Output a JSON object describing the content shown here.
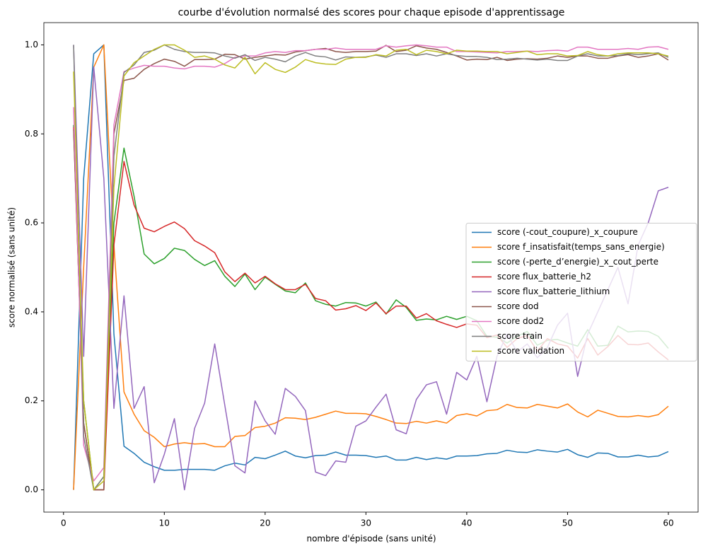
{
  "chart_data": {
    "type": "line",
    "title": "courbe d'évolution normalsé des scores pour chaque episode d'apprentissage",
    "x_label": "nombre d'épisode (sans unité)",
    "y_label": "score normalisé (sans unité)",
    "x": [
      1,
      2,
      3,
      4,
      5,
      6,
      7,
      8,
      9,
      10,
      11,
      12,
      13,
      14,
      15,
      16,
      17,
      18,
      19,
      20,
      21,
      22,
      23,
      24,
      25,
      26,
      27,
      28,
      29,
      30,
      31,
      32,
      33,
      34,
      35,
      36,
      37,
      38,
      39,
      40,
      41,
      42,
      43,
      44,
      45,
      46,
      47,
      48,
      49,
      50,
      51,
      52,
      53,
      54,
      55,
      56,
      57,
      58,
      59,
      60
    ],
    "xlim": [
      -1.95,
      62.95
    ],
    "xticks": [
      0,
      10,
      20,
      30,
      40,
      50,
      60
    ],
    "ylim": [
      -0.05,
      1.05
    ],
    "yticks": [
      {
        "value": 0,
        "label": "0.0"
      },
      0.2,
      0.4,
      0.6,
      0.8,
      {
        "value": 1,
        "label": "1.0"
      }
    ],
    "grid": false,
    "legend_position": "center right",
    "series": [
      {
        "name": "score (-cout_coupure)_x_coupure",
        "color": "#1f77b4",
        "values": [
          0.0,
          0.7,
          0.98,
          1.0,
          0.35,
          0.098,
          0.082,
          0.062,
          0.052,
          0.044,
          0.044,
          0.046,
          0.046,
          0.046,
          0.044,
          0.054,
          0.06,
          0.056,
          0.073,
          0.07,
          0.078,
          0.087,
          0.076,
          0.072,
          0.077,
          0.078,
          0.085,
          0.078,
          0.078,
          0.077,
          0.073,
          0.076,
          0.067,
          0.067,
          0.073,
          0.068,
          0.072,
          0.069,
          0.076,
          0.076,
          0.077,
          0.081,
          0.082,
          0.089,
          0.085,
          0.084,
          0.09,
          0.087,
          0.085,
          0.091,
          0.079,
          0.073,
          0.083,
          0.082,
          0.074,
          0.074,
          0.078,
          0.074,
          0.076,
          0.086
        ]
      },
      {
        "name": "score f_insatisfait(temps_sans_energie)",
        "color": "#ff7f0e",
        "values": [
          0.0,
          0.5,
          0.95,
          1.0,
          0.55,
          0.22,
          0.17,
          0.133,
          0.118,
          0.097,
          0.103,
          0.106,
          0.103,
          0.104,
          0.097,
          0.097,
          0.12,
          0.122,
          0.14,
          0.143,
          0.15,
          0.162,
          0.161,
          0.158,
          0.163,
          0.17,
          0.177,
          0.172,
          0.172,
          0.171,
          0.165,
          0.158,
          0.15,
          0.149,
          0.154,
          0.15,
          0.155,
          0.15,
          0.167,
          0.171,
          0.166,
          0.178,
          0.18,
          0.192,
          0.185,
          0.184,
          0.192,
          0.188,
          0.184,
          0.193,
          0.175,
          0.164,
          0.179,
          0.172,
          0.165,
          0.164,
          0.167,
          0.164,
          0.169,
          0.188
        ]
      },
      {
        "name": "score (-perte_d’energie)_x_cout_perte",
        "color": "#2ca02c",
        "values": [
          0.82,
          0.2,
          0.0,
          0.03,
          0.6,
          0.768,
          0.66,
          0.53,
          0.508,
          0.52,
          0.543,
          0.538,
          0.518,
          0.504,
          0.515,
          0.48,
          0.457,
          0.485,
          0.45,
          0.478,
          0.462,
          0.447,
          0.443,
          0.465,
          0.425,
          0.417,
          0.413,
          0.421,
          0.42,
          0.413,
          0.422,
          0.395,
          0.427,
          0.41,
          0.381,
          0.384,
          0.382,
          0.39,
          0.383,
          0.39,
          0.38,
          0.345,
          0.343,
          0.33,
          0.345,
          0.356,
          0.325,
          0.336,
          0.338,
          0.33,
          0.323,
          0.36,
          0.323,
          0.325,
          0.368,
          0.355,
          0.357,
          0.356,
          0.345,
          0.318
        ]
      },
      {
        "name": "score flux_batterie_h2",
        "color": "#d62728",
        "values": [
          0.815,
          0.15,
          0.0,
          0.0,
          0.55,
          0.738,
          0.64,
          0.588,
          0.58,
          0.592,
          0.602,
          0.587,
          0.56,
          0.548,
          0.533,
          0.49,
          0.468,
          0.487,
          0.465,
          0.48,
          0.463,
          0.45,
          0.45,
          0.462,
          0.43,
          0.425,
          0.404,
          0.407,
          0.414,
          0.403,
          0.42,
          0.396,
          0.413,
          0.413,
          0.386,
          0.396,
          0.38,
          0.372,
          0.365,
          0.373,
          0.37,
          0.342,
          0.348,
          0.32,
          0.34,
          0.347,
          0.312,
          0.34,
          0.328,
          0.323,
          0.296,
          0.34,
          0.303,
          0.322,
          0.347,
          0.327,
          0.326,
          0.33,
          0.31,
          0.292
        ]
      },
      {
        "name": "score flux_batterie_lithium",
        "color": "#9467bd",
        "values": [
          1.0,
          0.3,
          0.95,
          0.7,
          0.183,
          0.436,
          0.183,
          0.232,
          0.016,
          0.08,
          0.16,
          0.0,
          0.138,
          0.195,
          0.328,
          0.19,
          0.054,
          0.038,
          0.2,
          0.155,
          0.125,
          0.228,
          0.21,
          0.178,
          0.04,
          0.032,
          0.065,
          0.062,
          0.143,
          0.155,
          0.186,
          0.215,
          0.135,
          0.126,
          0.203,
          0.236,
          0.243,
          0.17,
          0.264,
          0.247,
          0.3,
          0.198,
          0.3,
          0.35,
          0.31,
          0.328,
          0.297,
          0.32,
          0.37,
          0.397,
          0.255,
          0.35,
          0.4,
          0.45,
          0.5,
          0.418,
          0.55,
          0.6,
          0.672,
          0.68
        ]
      },
      {
        "name": "score dod",
        "color": "#8c564b",
        "values": [
          0.81,
          0.15,
          0.0,
          0.0,
          0.8,
          0.92,
          0.925,
          0.945,
          0.958,
          0.968,
          0.963,
          0.952,
          0.967,
          0.967,
          0.968,
          0.979,
          0.978,
          0.968,
          0.972,
          0.975,
          0.978,
          0.977,
          0.984,
          0.987,
          0.99,
          0.992,
          0.985,
          0.983,
          0.985,
          0.985,
          0.986,
          0.999,
          0.985,
          0.988,
          0.998,
          0.993,
          0.99,
          0.983,
          0.975,
          0.966,
          0.968,
          0.967,
          0.972,
          0.965,
          0.968,
          0.969,
          0.968,
          0.97,
          0.975,
          0.972,
          0.975,
          0.975,
          0.97,
          0.97,
          0.975,
          0.978,
          0.972,
          0.975,
          0.98,
          0.966
        ]
      },
      {
        "name": "score dod2",
        "color": "#e377c2",
        "values": [
          0.86,
          0.1,
          0.02,
          0.05,
          0.82,
          0.94,
          0.948,
          0.954,
          0.952,
          0.952,
          0.948,
          0.946,
          0.952,
          0.952,
          0.95,
          0.958,
          0.972,
          0.975,
          0.975,
          0.982,
          0.985,
          0.983,
          0.987,
          0.987,
          0.99,
          0.99,
          0.993,
          0.99,
          0.99,
          0.99,
          0.99,
          0.998,
          0.995,
          0.998,
          1.0,
          0.998,
          0.995,
          0.995,
          0.985,
          0.985,
          0.984,
          0.983,
          0.982,
          0.985,
          0.985,
          0.986,
          0.985,
          0.987,
          0.988,
          0.986,
          0.995,
          0.995,
          0.99,
          0.99,
          0.99,
          0.992,
          0.99,
          0.995,
          0.996,
          0.99
        ]
      },
      {
        "name": "score train",
        "color": "#7f7f7f",
        "values": [
          1.0,
          0.12,
          0.0,
          0.03,
          0.75,
          0.938,
          0.955,
          0.983,
          0.988,
          1.0,
          0.99,
          0.985,
          0.983,
          0.983,
          0.982,
          0.975,
          0.97,
          0.978,
          0.965,
          0.972,
          0.968,
          0.962,
          0.975,
          0.983,
          0.975,
          0.973,
          0.966,
          0.973,
          0.972,
          0.973,
          0.977,
          0.972,
          0.98,
          0.98,
          0.976,
          0.98,
          0.975,
          0.98,
          0.976,
          0.974,
          0.974,
          0.972,
          0.967,
          0.968,
          0.97,
          0.968,
          0.966,
          0.968,
          0.965,
          0.965,
          0.975,
          0.98,
          0.975,
          0.975,
          0.976,
          0.98,
          0.978,
          0.98,
          0.982,
          0.972
        ]
      },
      {
        "name": "score validation",
        "color": "#bcbd22",
        "values": [
          0.94,
          0.2,
          0.0,
          0.02,
          0.68,
          0.93,
          0.96,
          0.975,
          0.99,
          1.0,
          1.0,
          0.988,
          0.972,
          0.975,
          0.968,
          0.955,
          0.948,
          0.972,
          0.935,
          0.96,
          0.945,
          0.938,
          0.95,
          0.967,
          0.96,
          0.957,
          0.956,
          0.968,
          0.972,
          0.972,
          0.978,
          0.975,
          0.988,
          0.99,
          0.978,
          0.988,
          0.985,
          0.98,
          0.988,
          0.986,
          0.986,
          0.985,
          0.985,
          0.98,
          0.983,
          0.986,
          0.978,
          0.98,
          0.98,
          0.975,
          0.976,
          0.985,
          0.978,
          0.975,
          0.98,
          0.982,
          0.982,
          0.982,
          0.98,
          0.975
        ]
      }
    ]
  }
}
